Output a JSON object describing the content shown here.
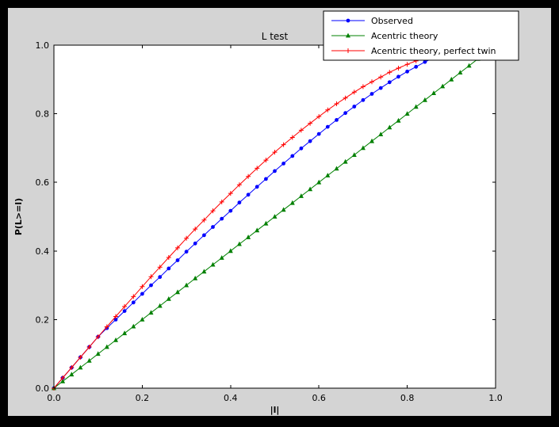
{
  "figure": {
    "title": "L test",
    "xlabel": "|l|",
    "ylabel": "P(L>=l)",
    "colors": {
      "window_background": "#000000",
      "figure_background": "#d4d4d4",
      "axes_background": "#ffffff",
      "frame": "#000000",
      "observed": "#0000ff",
      "acentric_theory": "#008000",
      "acentric_theory_perfect_twin": "#ff0000"
    }
  },
  "legend": {
    "items": [
      {
        "label": "Observed",
        "color": "#0000ff",
        "marker": "circle"
      },
      {
        "label": "Acentric theory",
        "color": "#008000",
        "marker": "triangle"
      },
      {
        "label": "Acentric theory, perfect twin",
        "color": "#ff0000",
        "marker": "plus"
      }
    ]
  },
  "chart_data": {
    "type": "line",
    "title": "L test",
    "xlabel": "|l|",
    "ylabel": "P(L>=l)",
    "xlim": [
      0.0,
      1.0
    ],
    "ylim": [
      0.0,
      1.0
    ],
    "x_ticks": [
      0.0,
      0.2,
      0.4,
      0.6,
      0.8,
      1.0
    ],
    "y_ticks": [
      0.0,
      0.2,
      0.4,
      0.6,
      0.8,
      1.0
    ],
    "grid": false,
    "legend_position": "upper right",
    "series": [
      {
        "name": "Observed",
        "color": "#0000ff",
        "marker": "circle",
        "x": [
          0,
          0.02,
          0.04,
          0.06,
          0.08,
          0.1,
          0.12,
          0.14,
          0.16,
          0.18,
          0.2,
          0.22,
          0.24,
          0.26,
          0.28,
          0.3,
          0.32,
          0.34,
          0.36,
          0.38,
          0.4,
          0.42,
          0.44,
          0.46,
          0.48,
          0.5,
          0.52,
          0.54,
          0.56,
          0.58,
          0.6,
          0.62,
          0.64,
          0.66,
          0.68,
          0.7,
          0.72,
          0.74,
          0.76,
          0.78,
          0.8,
          0.82,
          0.84,
          0.86
        ],
        "y": [
          0,
          0.03,
          0.06,
          0.09,
          0.12,
          0.15,
          0.175,
          0.2,
          0.225,
          0.25,
          0.275,
          0.3,
          0.324,
          0.349,
          0.373,
          0.398,
          0.422,
          0.446,
          0.47,
          0.494,
          0.517,
          0.541,
          0.564,
          0.587,
          0.61,
          0.633,
          0.655,
          0.677,
          0.699,
          0.72,
          0.741,
          0.762,
          0.782,
          0.802,
          0.821,
          0.84,
          0.858,
          0.875,
          0.892,
          0.908,
          0.923,
          0.937,
          0.951,
          0.963
        ]
      },
      {
        "name": "Acentric theory",
        "color": "#008000",
        "marker": "triangle",
        "x": [
          0,
          0.02,
          0.04,
          0.06,
          0.08,
          0.1,
          0.12,
          0.14,
          0.16,
          0.18,
          0.2,
          0.22,
          0.24,
          0.26,
          0.28,
          0.3,
          0.32,
          0.34,
          0.36,
          0.38,
          0.4,
          0.42,
          0.44,
          0.46,
          0.48,
          0.5,
          0.52,
          0.54,
          0.56,
          0.58,
          0.6,
          0.62,
          0.64,
          0.66,
          0.68,
          0.7,
          0.72,
          0.74,
          0.76,
          0.78,
          0.8,
          0.82,
          0.84,
          0.86,
          0.88,
          0.9,
          0.92,
          0.94,
          0.96
        ],
        "y": [
          0,
          0.02,
          0.04,
          0.06,
          0.08,
          0.1,
          0.12,
          0.14,
          0.16,
          0.18,
          0.2,
          0.22,
          0.24,
          0.26,
          0.28,
          0.3,
          0.32,
          0.34,
          0.36,
          0.38,
          0.4,
          0.42,
          0.44,
          0.46,
          0.48,
          0.5,
          0.52,
          0.54,
          0.56,
          0.58,
          0.6,
          0.62,
          0.64,
          0.66,
          0.68,
          0.7,
          0.72,
          0.74,
          0.76,
          0.78,
          0.8,
          0.82,
          0.84,
          0.86,
          0.88,
          0.9,
          0.92,
          0.94,
          0.96
        ]
      },
      {
        "name": "Acentric theory, perfect twin",
        "color": "#ff0000",
        "marker": "plus",
        "x": [
          0,
          0.02,
          0.04,
          0.06,
          0.08,
          0.1,
          0.12,
          0.14,
          0.16,
          0.18,
          0.2,
          0.22,
          0.24,
          0.26,
          0.28,
          0.3,
          0.32,
          0.34,
          0.36,
          0.38,
          0.4,
          0.42,
          0.44,
          0.46,
          0.48,
          0.5,
          0.52,
          0.54,
          0.56,
          0.58,
          0.6,
          0.62,
          0.64,
          0.66,
          0.68,
          0.7,
          0.72,
          0.74,
          0.76,
          0.78,
          0.8,
          0.82,
          0.84,
          0.86
        ],
        "y": [
          0,
          0.03,
          0.06,
          0.09,
          0.12,
          0.15,
          0.179,
          0.209,
          0.238,
          0.267,
          0.296,
          0.325,
          0.353,
          0.381,
          0.409,
          0.437,
          0.464,
          0.49,
          0.517,
          0.543,
          0.568,
          0.593,
          0.617,
          0.641,
          0.665,
          0.688,
          0.71,
          0.731,
          0.752,
          0.772,
          0.792,
          0.811,
          0.829,
          0.846,
          0.863,
          0.879,
          0.893,
          0.907,
          0.921,
          0.933,
          0.944,
          0.954,
          0.964,
          0.972
        ]
      }
    ]
  }
}
